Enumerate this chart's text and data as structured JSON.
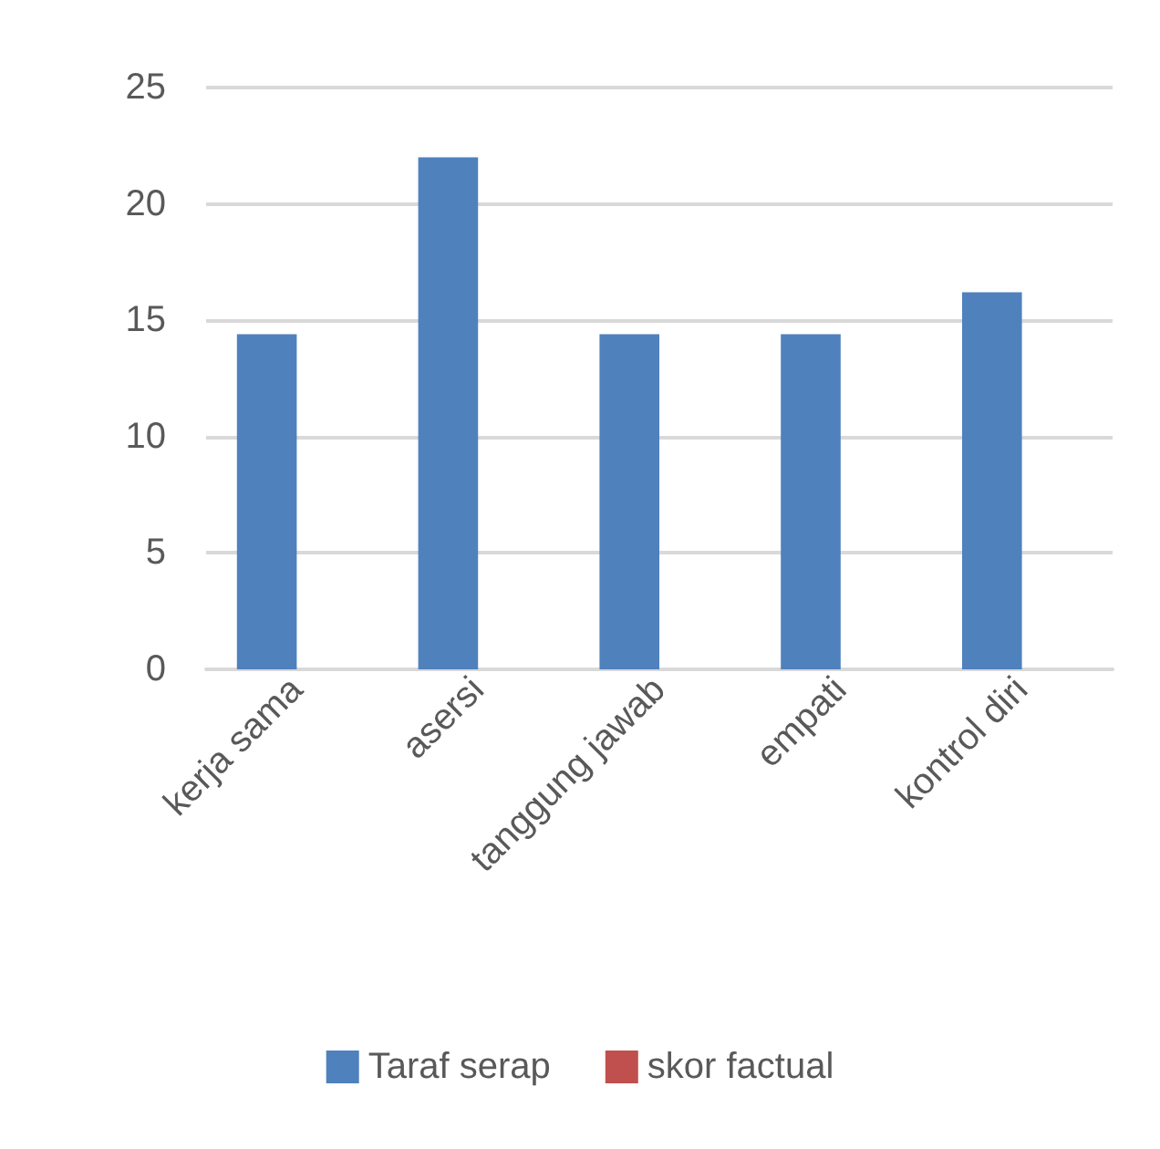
{
  "chart_data": {
    "type": "bar",
    "categories": [
      "kerja sama",
      "asersi",
      "tanggung jawab",
      "empati",
      "kontrol diri"
    ],
    "series": [
      {
        "name": "Taraf serap",
        "color": "#4f81bd",
        "values": [
          14.4,
          22.0,
          14.4,
          14.4,
          16.2
        ]
      },
      {
        "name": "skor factual",
        "color": "#c0504d",
        "values": [
          null,
          null,
          null,
          null,
          null
        ]
      }
    ],
    "ylim": [
      0,
      25
    ],
    "yticks": [
      0,
      5,
      10,
      15,
      20,
      25
    ],
    "grid": "y",
    "legend": "bottom"
  }
}
